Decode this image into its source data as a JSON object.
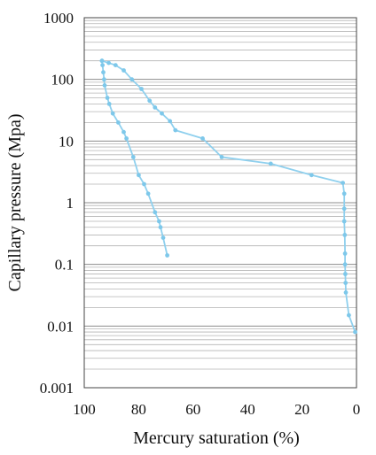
{
  "chart_data": {
    "type": "line",
    "title": "",
    "xlabel": "Mercury saturation (%)",
    "ylabel": "Capillary pressure (Mpa)",
    "xlim": [
      100,
      0
    ],
    "x_reversed": true,
    "xticks": [
      "100",
      "80",
      "60",
      "40",
      "20",
      "0"
    ],
    "ylim": [
      0.001,
      1000
    ],
    "yscale": "log",
    "yticks": [
      "1000",
      "100",
      "10",
      "1",
      "0.1",
      "0.01",
      "0.001"
    ],
    "grid": "horizontal",
    "color": "#8fd0ee",
    "series": [
      {
        "x": [
          93.5,
          93.3,
          93.0,
          92.7,
          92.5,
          91.5,
          90.8,
          89.5,
          87.5,
          85.5,
          84.5,
          82.0,
          80.0,
          78.0,
          76.5,
          74.0,
          72.5,
          72.0,
          71.0,
          69.5
        ],
        "y": [
          200,
          170,
          130,
          100,
          80,
          50,
          40,
          28,
          20,
          14,
          11,
          5.5,
          2.8,
          2.0,
          1.4,
          0.7,
          0.5,
          0.4,
          0.27,
          0.14
        ],
        "name": ""
      },
      {
        "x": [
          93.5,
          91.0,
          88.5,
          85.5,
          82.5,
          79.0,
          76.0,
          74.0,
          71.5,
          68.5,
          66.5,
          56.5,
          49.5,
          31.5,
          16.5,
          5.0,
          4.5,
          4.5,
          4.5,
          4.3,
          4.2,
          4.2,
          4.1,
          4.0,
          3.9,
          2.8,
          0.5
        ],
        "y": [
          200,
          185,
          170,
          140,
          100,
          70,
          45,
          35,
          28,
          21,
          15,
          11,
          5.5,
          4.3,
          2.8,
          2.1,
          1.4,
          0.8,
          0.5,
          0.3,
          0.15,
          0.1,
          0.07,
          0.05,
          0.035,
          0.015,
          0.008
        ],
        "name": ""
      }
    ]
  }
}
